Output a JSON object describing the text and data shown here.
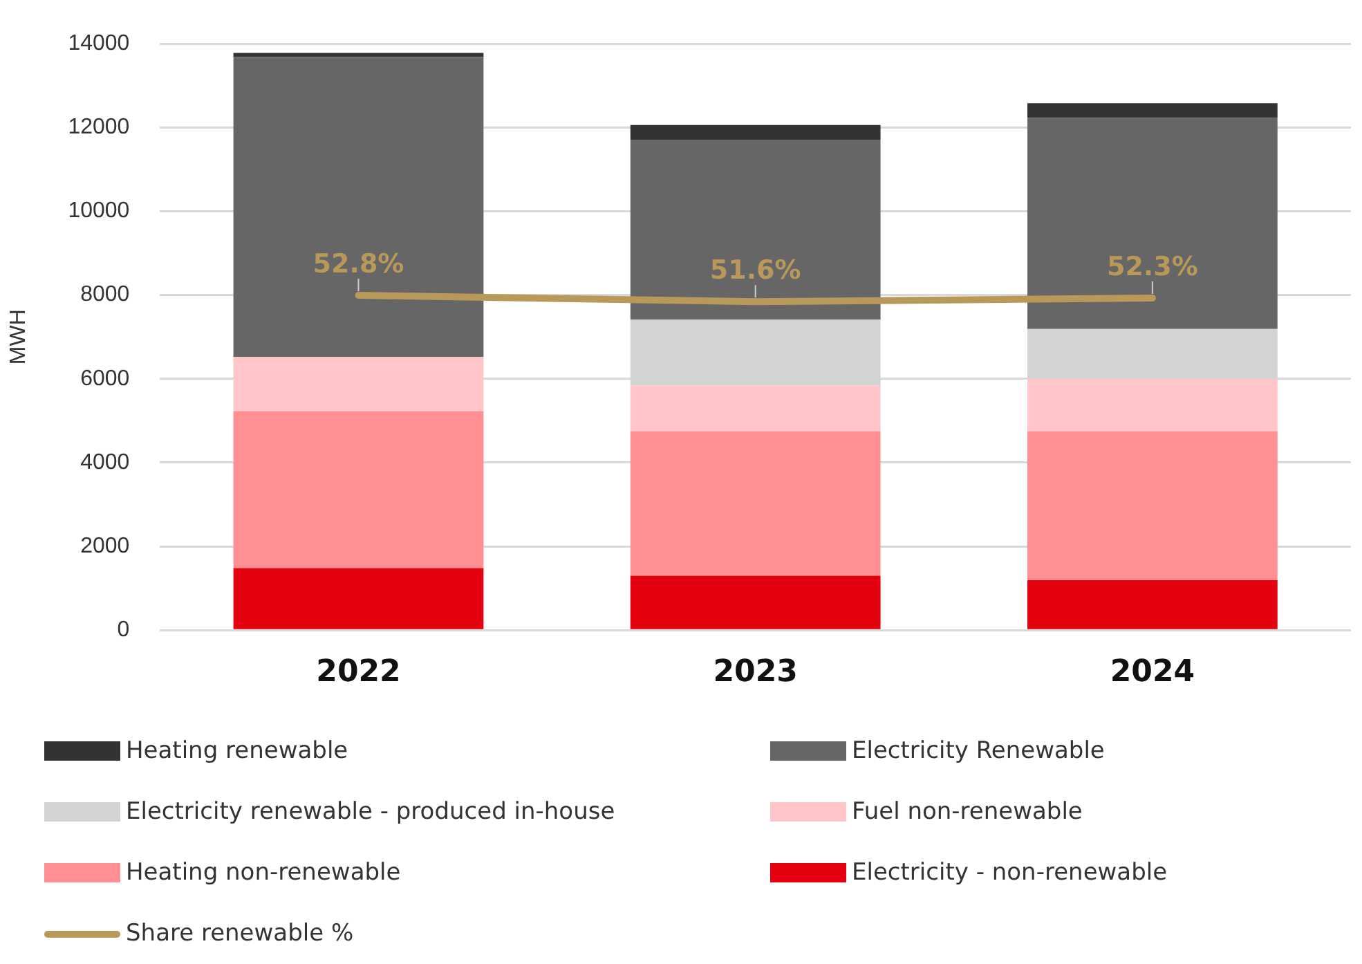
{
  "chart_data": {
    "type": "bar",
    "stacked": true,
    "ylabel": "MWH",
    "categories": [
      "2022",
      "2023",
      "2024"
    ],
    "ylim": [
      0,
      14000
    ],
    "yticks": [
      0,
      2000,
      4000,
      6000,
      8000,
      10000,
      12000,
      14000
    ],
    "y2lim": [
      -10,
      100
    ],
    "grid": "y",
    "legend": "bottom",
    "series": [
      {
        "name": "Electricity - non-renewable",
        "color": "#e3000f",
        "values": [
          1480,
          1300,
          1190
        ]
      },
      {
        "name": "Heating non-renewable",
        "color": "#ff8f93",
        "values": [
          3750,
          3450,
          3560
        ]
      },
      {
        "name": "Fuel non-renewable",
        "color": "#ffc5c8",
        "values": [
          1290,
          1090,
          1250
        ]
      },
      {
        "name": "Electricity renewable - produced in-house",
        "color": "#d2d3d2",
        "values": [
          0,
          1570,
          1190
        ]
      },
      {
        "name": "Electricity Renewable",
        "color": "#666666",
        "values": [
          7160,
          4300,
          5040
        ]
      },
      {
        "name": "Heating renewable",
        "color": "#333333",
        "values": [
          100,
          350,
          350
        ]
      },
      {
        "name": "Share renewable %",
        "type": "line",
        "axis": "y2",
        "color": "#b8995a",
        "values": [
          52.8,
          51.6,
          52.3
        ],
        "value_labels": [
          "52.8%",
          "51.6%",
          "52.3%"
        ]
      }
    ]
  }
}
